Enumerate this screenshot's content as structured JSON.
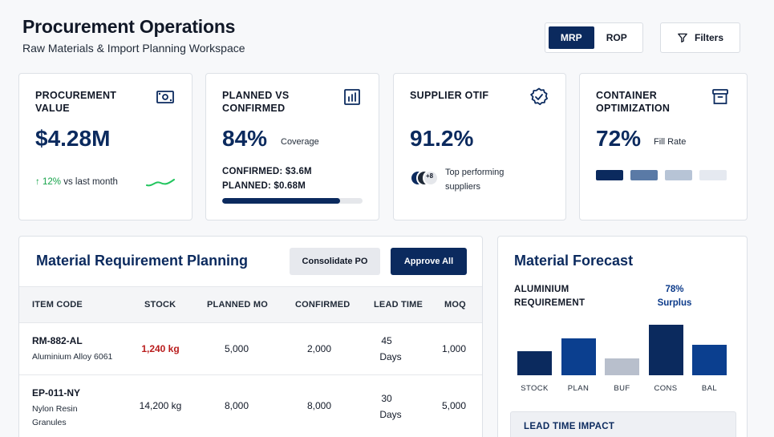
{
  "header": {
    "title": "Procurement Operations",
    "subtitle": "Raw Materials & Import Planning Workspace"
  },
  "mode_toggle": {
    "options": [
      "MRP",
      "ROP"
    ],
    "selected": "MRP"
  },
  "filters_label": "Filters",
  "kpis": {
    "procurement_value": {
      "title": "PROCUREMENT VALUE",
      "value": "$4.28M",
      "trend": "12%",
      "trend_suffix": "vs last month",
      "icon": "banknote-icon"
    },
    "planned_vs_confirmed": {
      "title": "PLANNED VS CONFIRMED",
      "value": "84%",
      "unit": "Coverage",
      "confirmed": "CONFIRMED: $3.6M",
      "planned": "PLANNED: $0.68M",
      "progress": 0.84,
      "icon": "bar-chart-icon"
    },
    "supplier_otif": {
      "title": "SUPPLIER OTIF",
      "value": "91.2%",
      "avatars_more": "+8",
      "note": "Top performing suppliers",
      "icon": "badge-check-icon"
    },
    "container": {
      "title": "CONTAINER OPTIMIZATION",
      "value": "72%",
      "unit": "Fill Rate",
      "icon": "archive-icon",
      "segment_colors": [
        "#0b2a5e",
        "#5a7aa6",
        "#b7c4d6",
        "#e5e9f0"
      ]
    }
  },
  "mrp": {
    "title": "Material Requirement Planning",
    "consolidate_label": "Consolidate PO",
    "approve_label": "Approve All",
    "columns": [
      "ITEM CODE",
      "STOCK",
      "PLANNED MO",
      "CONFIRMED",
      "LEAD TIME",
      "MOQ"
    ],
    "rows": [
      {
        "code": "RM-882-AL",
        "desc": "Aluminium Alloy 6061",
        "stock": "1,240 kg",
        "stock_low": true,
        "planned": "5,000",
        "confirmed": "2,000",
        "lead_value": "45",
        "lead_unit": "Days",
        "moq": "1,000"
      },
      {
        "code": "EP-011-NY",
        "desc": "Nylon Resin Granules",
        "stock": "14,200 kg",
        "stock_low": false,
        "planned": "8,000",
        "confirmed": "8,000",
        "lead_value": "30",
        "lead_unit": "Days",
        "moq": "5,000"
      }
    ]
  },
  "forecast": {
    "title": "Material Forecast",
    "requirement_label": "ALUMINIUM REQUIREMENT",
    "surplus_value": "78%",
    "surplus_label": "Surplus",
    "lead_time_title": "LEAD TIME IMPACT"
  },
  "chart_data": {
    "type": "bar",
    "categories": [
      "STOCK",
      "PLAN",
      "BUF",
      "CONS",
      "BAL"
    ],
    "values": [
      47,
      73,
      33,
      100,
      60
    ],
    "ylim": [
      0,
      100
    ],
    "colors": [
      "#0b2a5e",
      "#0b3f8f",
      "#b8bfcc",
      "#0b2a5e",
      "#0b3f8f"
    ],
    "grid": false,
    "legend": "none"
  }
}
